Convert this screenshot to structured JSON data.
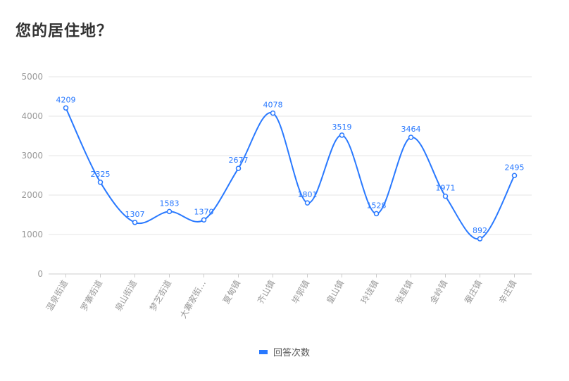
{
  "title": "您的居住地？",
  "colors": {
    "series": "#2979ff",
    "grid": "#e6e6e6",
    "axis": "#cccccc",
    "tick_text": "#999999"
  },
  "chart_data": {
    "type": "line",
    "smooth": true,
    "categories": [
      "温泉街道",
      "罗寨街道",
      "泉山街道",
      "梦芝街道",
      "大寨家街…",
      "夏甸镇",
      "齐山镇",
      "毕郭镇",
      "皇山镇",
      "玲珑镇",
      "张星镇",
      "金岭镇",
      "蚕庄镇",
      "辛庄镇"
    ],
    "series": [
      {
        "name": "回答次数",
        "values": [
          4209,
          2325,
          1307,
          1583,
          1370,
          2677,
          4078,
          1801,
          3519,
          1528,
          3464,
          1971,
          892,
          2495
        ]
      }
    ],
    "ylim": [
      0,
      5000
    ],
    "yticks": [
      0,
      1000,
      2000,
      3000,
      4000,
      5000
    ],
    "grid": true,
    "legend_position": "bottom-center",
    "data_labels": true
  }
}
